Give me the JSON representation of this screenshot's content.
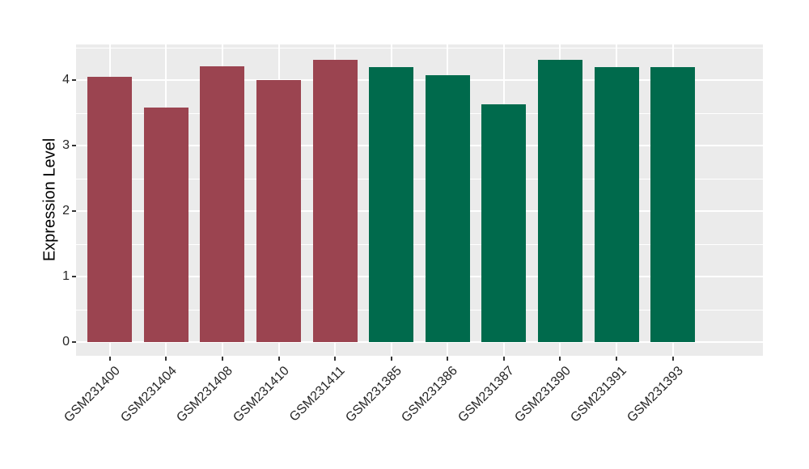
{
  "page": {
    "background_color": "#FFFFFF"
  },
  "chart_data": {
    "type": "bar",
    "title": "",
    "xlabel": "",
    "ylabel": "Expression Level",
    "categories": [
      "GSM231400",
      "GSM231404",
      "GSM231408",
      "GSM231410",
      "GSM231411",
      "GSM231385",
      "GSM231386",
      "GSM231387",
      "GSM231390",
      "GSM231391",
      "GSM231393"
    ],
    "values": [
      4.05,
      3.59,
      4.21,
      4.01,
      4.31,
      4.2,
      4.08,
      3.63,
      4.31,
      4.2,
      4.2
    ],
    "bar_colors": [
      "#9B4450",
      "#9B4450",
      "#9B4450",
      "#9B4450",
      "#9B4450",
      "#006A4C",
      "#006A4C",
      "#006A4C",
      "#006A4C",
      "#006A4C",
      "#006A4C"
    ],
    "color_groups": [
      {
        "color": "#9B4450",
        "samples": [
          "GSM231400",
          "GSM231404",
          "GSM231408",
          "GSM231410",
          "GSM231411"
        ]
      },
      {
        "color": "#006A4C",
        "samples": [
          "GSM231385",
          "GSM231386",
          "GSM231387",
          "GSM231390",
          "GSM231391",
          "GSM231393"
        ]
      }
    ],
    "yticks": [
      0,
      1,
      2,
      3,
      4
    ],
    "yticks_minor": [
      0.5,
      1.5,
      2.5,
      3.5,
      4.5
    ],
    "ylim": [
      -0.21,
      4.55
    ],
    "grid": true,
    "legend_position": "none",
    "panel_bg": "#EBEBEB",
    "grid_color": "#FFFFFF",
    "tick_color": "#333333",
    "tick_label_color": "#262626",
    "axis_title_color": "#000000",
    "x_tick_label_rotation_deg": 45
  }
}
